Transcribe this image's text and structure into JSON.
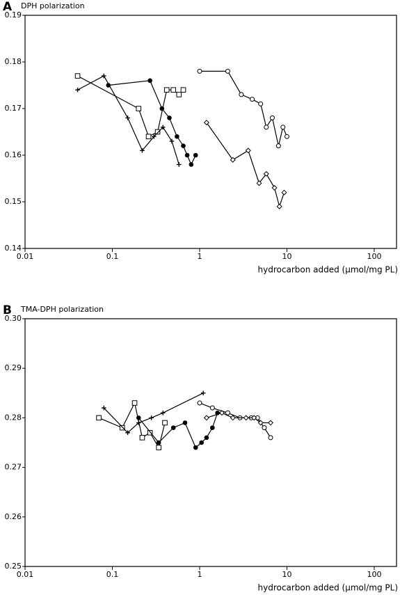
{
  "chart_data": [
    {
      "type": "line",
      "panel": "A",
      "title": "DPH polarization",
      "xlabel": "hydrocarbon added (µmol/mg PL)",
      "xscale": "log",
      "xlim": [
        0.01,
        180
      ],
      "xticks": [
        0.01,
        0.1,
        1,
        10,
        100
      ],
      "ylim": [
        0.14,
        0.19
      ],
      "yticks": [
        0.14,
        0.15,
        0.16,
        0.17,
        0.18,
        0.19
      ],
      "series": [
        {
          "marker": "square",
          "color": "#000000",
          "x": [
            0.04,
            0.2,
            0.26,
            0.33,
            0.42,
            0.5,
            0.58,
            0.65
          ],
          "values": [
            0.177,
            0.17,
            0.164,
            0.165,
            0.174,
            0.174,
            0.173,
            0.174
          ]
        },
        {
          "marker": "plus",
          "color": "#000000",
          "x": [
            0.04,
            0.08,
            0.15,
            0.22,
            0.3,
            0.38,
            0.48,
            0.58
          ],
          "values": [
            0.174,
            0.177,
            0.168,
            0.161,
            0.164,
            0.166,
            0.163,
            0.158
          ]
        },
        {
          "marker": "filled-circle",
          "color": "#000000",
          "x": [
            0.09,
            0.27,
            0.37,
            0.45,
            0.55,
            0.65,
            0.72,
            0.8,
            0.9
          ],
          "values": [
            0.175,
            0.176,
            0.17,
            0.168,
            0.164,
            0.162,
            0.16,
            0.158,
            0.16
          ]
        },
        {
          "marker": "circle",
          "color": "#000000",
          "x": [
            1,
            2.1,
            3,
            4,
            5,
            5.8,
            6.8,
            8,
            9,
            10
          ],
          "values": [
            0.178,
            0.178,
            0.173,
            0.172,
            0.171,
            0.166,
            0.168,
            0.162,
            0.166,
            0.164
          ]
        },
        {
          "marker": "diamond",
          "color": "#000000",
          "x": [
            1.2,
            2.4,
            3.6,
            4.8,
            5.8,
            7.2,
            8.2,
            9.3
          ],
          "values": [
            0.167,
            0.159,
            0.161,
            0.154,
            0.156,
            0.153,
            0.149,
            0.152
          ]
        }
      ]
    },
    {
      "type": "line",
      "panel": "B",
      "title": "TMA-DPH polarization",
      "xlabel": "hydrocarbon added (µmol/mg PL)",
      "xscale": "log",
      "xlim": [
        0.01,
        180
      ],
      "xticks": [
        0.01,
        0.1,
        1,
        10,
        100
      ],
      "ylim": [
        0.25,
        0.3
      ],
      "yticks": [
        0.25,
        0.26,
        0.27,
        0.28,
        0.29,
        {
          "value": 0.3,
          "label": "0.30"
        }
      ],
      "series": [
        {
          "marker": "square",
          "color": "#000000",
          "x": [
            0.07,
            0.13,
            0.18,
            0.22,
            0.27,
            0.34,
            0.4
          ],
          "values": [
            0.28,
            0.278,
            0.283,
            0.276,
            0.277,
            0.274,
            0.279
          ]
        },
        {
          "marker": "plus",
          "color": "#000000",
          "x": [
            0.08,
            0.15,
            0.2,
            0.28,
            0.38,
            1.1
          ],
          "values": [
            0.282,
            0.277,
            0.279,
            0.28,
            0.281,
            0.285
          ]
        },
        {
          "marker": "filled-circle",
          "color": "#000000",
          "x": [
            0.2,
            0.34,
            0.5,
            0.68,
            0.9,
            1.05,
            1.2,
            1.4,
            1.6
          ],
          "values": [
            0.28,
            0.275,
            0.278,
            0.279,
            0.274,
            0.275,
            0.276,
            0.278,
            0.281
          ]
        },
        {
          "marker": "circle",
          "color": "#000000",
          "x": [
            1,
            1.4,
            2.1,
            2.9,
            3.9,
            4.6,
            5.5,
            6.5
          ],
          "values": [
            0.283,
            0.282,
            0.281,
            0.28,
            0.28,
            0.28,
            0.278,
            0.276
          ]
        },
        {
          "marker": "diamond",
          "color": "#000000",
          "x": [
            1.2,
            1.8,
            2.4,
            3.4,
            4.2,
            5,
            6.5
          ],
          "values": [
            0.28,
            0.281,
            0.28,
            0.28,
            0.28,
            0.279,
            0.279
          ]
        }
      ]
    }
  ]
}
